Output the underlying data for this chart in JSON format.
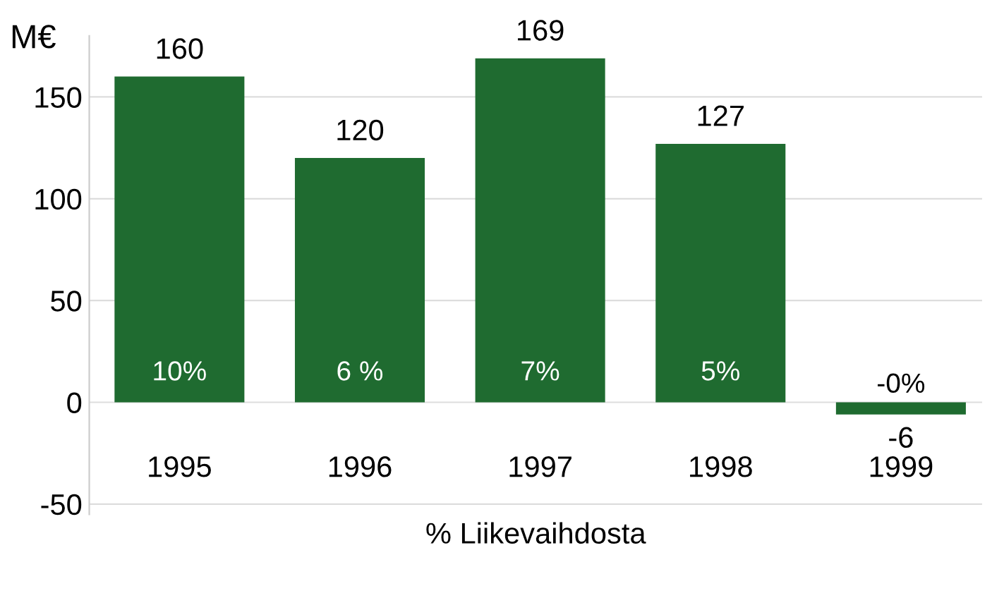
{
  "chart_data": {
    "type": "bar",
    "ylabel": "M€",
    "xlabel": "% Liikevaihdosta",
    "categories": [
      "1995",
      "1996",
      "1997",
      "1998",
      "1999"
    ],
    "values": [
      160,
      120,
      169,
      127,
      -6
    ],
    "color": "#1f6b30",
    "data_labels": true,
    "ylim": [
      -55,
      180
    ],
    "yticks": [
      -50,
      0,
      50,
      100,
      150
    ],
    "grid": "y",
    "annotations": [
      "10%",
      "6 %",
      "7%",
      "5%",
      "-0%"
    ]
  }
}
